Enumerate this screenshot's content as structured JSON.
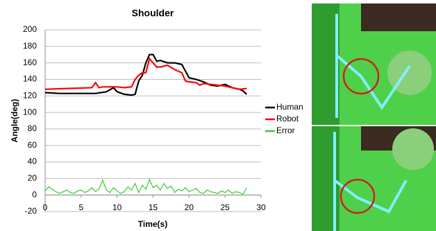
{
  "chart_data": {
    "type": "line",
    "title": "Shoulder",
    "x_label": "Time(s)",
    "y_label": "Angle(deg)",
    "xlim": [
      0,
      30
    ],
    "xticks": [
      0,
      5,
      10,
      15,
      20,
      25,
      30
    ],
    "ylim": [
      -20,
      200
    ],
    "yticks": [
      -20,
      0,
      20,
      40,
      60,
      80,
      100,
      120,
      140,
      160,
      180,
      200
    ],
    "grid": true,
    "legend": "right",
    "series": [
      {
        "name": "Human",
        "color": "#000000",
        "x": [
          0,
          2,
          5,
          7,
          8.5,
          9.5,
          10,
          11,
          12,
          12.5,
          13,
          13.5,
          14,
          14.5,
          15,
          15.5,
          16,
          17,
          18,
          19,
          19.5,
          20,
          21,
          22,
          23,
          24,
          25,
          26,
          27,
          27.5,
          28
        ],
        "values": [
          124,
          123,
          123,
          123,
          125,
          130,
          125,
          122,
          121,
          122,
          138,
          145,
          160,
          170,
          170,
          162,
          163,
          160,
          160,
          158,
          150,
          142,
          140,
          137,
          133,
          132,
          134,
          130,
          128,
          126,
          122
        ]
      },
      {
        "name": "Robot",
        "color": "#ff0000",
        "x": [
          0,
          3,
          6.5,
          7,
          7.5,
          8,
          9,
          10,
          11,
          12,
          12.5,
          13,
          13.5,
          14,
          14.5,
          15,
          15.5,
          16,
          17,
          18,
          19,
          19.5,
          20,
          21,
          21.5,
          22,
          24,
          25,
          26,
          27,
          28
        ],
        "values": [
          128,
          129,
          130,
          136,
          130,
          131,
          131,
          131,
          130,
          131,
          140,
          145,
          148,
          148,
          165,
          160,
          155,
          155,
          157,
          152,
          148,
          138,
          137,
          136,
          133,
          135,
          133,
          132,
          130,
          128,
          129
        ]
      },
      {
        "name": "Error",
        "color": "#33cc33",
        "x": [
          0,
          0.5,
          1,
          1.5,
          2,
          2.5,
          3,
          3.5,
          4,
          4.5,
          5,
          5.5,
          6,
          6.5,
          7,
          7.5,
          8,
          8.5,
          9,
          9.5,
          10,
          10.5,
          11,
          11.5,
          12,
          12.5,
          13,
          13.5,
          14,
          14.5,
          15,
          15.5,
          16,
          16.5,
          17,
          17.5,
          18,
          18.5,
          19,
          19.5,
          20,
          20.5,
          21,
          21.5,
          22,
          22.5,
          23,
          23.5,
          24,
          24.5,
          25,
          25.5,
          26,
          26.5,
          27,
          27.5,
          28
        ],
        "values": [
          5,
          10,
          7,
          4,
          2,
          4,
          6,
          3,
          2,
          5,
          6,
          3,
          5,
          9,
          4,
          8,
          18,
          6,
          3,
          9,
          5,
          2,
          4,
          10,
          6,
          14,
          3,
          12,
          7,
          19,
          9,
          12,
          6,
          14,
          8,
          11,
          3,
          7,
          5,
          9,
          4,
          6,
          8,
          3,
          2,
          6,
          4,
          3,
          2,
          5,
          3,
          6,
          2,
          4,
          3,
          1,
          9
        ]
      }
    ]
  }
}
